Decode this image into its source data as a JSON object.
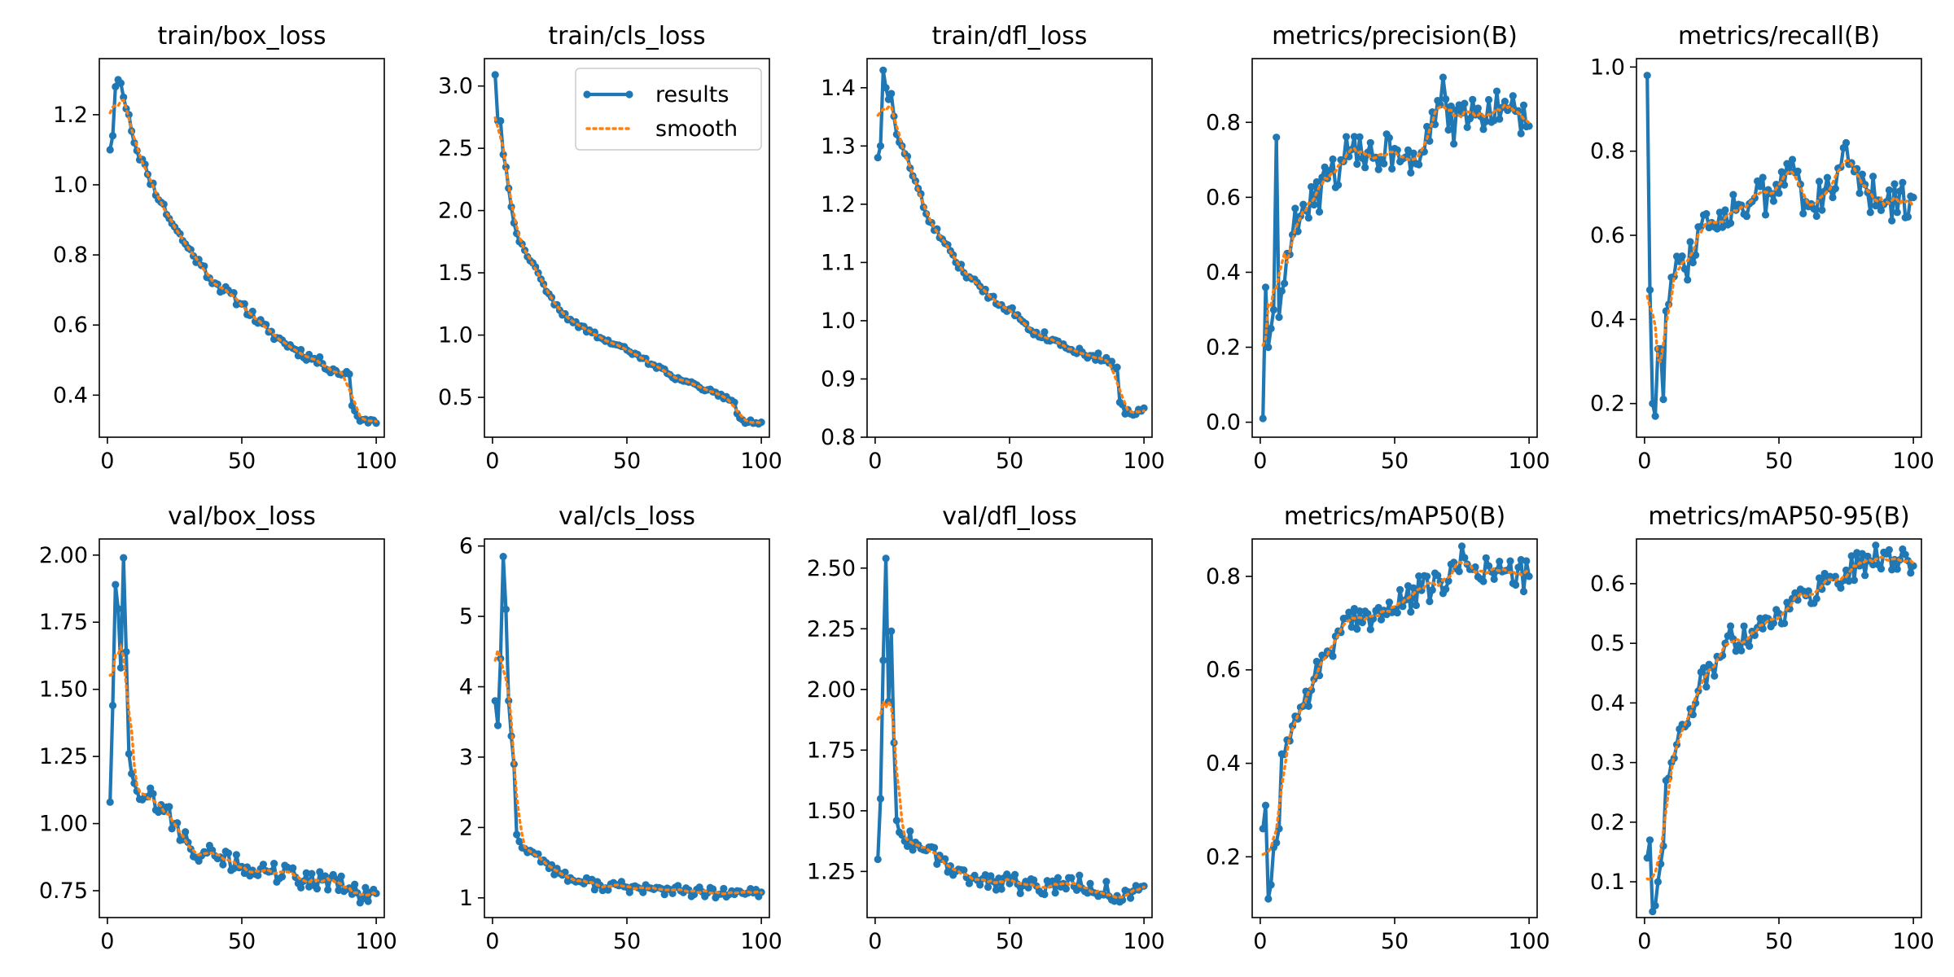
{
  "colors": {
    "results": "#1f77b4",
    "smooth": "#ff7f0e",
    "axes": "#000000"
  },
  "legend": {
    "items": [
      {
        "label": "results",
        "style": "line-marker"
      },
      {
        "label": "smooth",
        "style": "dotted"
      }
    ],
    "placement": "upper-right of train/cls_loss"
  },
  "chart_data": [
    {
      "type": "line",
      "title": "train/box_loss",
      "xlim": [
        -3,
        103
      ],
      "ylim": [
        0.28,
        1.36
      ],
      "xticks": [
        0,
        50,
        100
      ],
      "yticks": [
        0.4,
        0.6,
        0.8,
        1.0,
        1.2
      ],
      "ytick_labels": [
        "0.4",
        "0.6",
        "0.8",
        "1.0",
        "1.2"
      ],
      "anchors": [
        [
          1,
          1.1
        ],
        [
          2,
          1.14
        ],
        [
          3,
          1.28
        ],
        [
          4,
          1.3
        ],
        [
          5,
          1.29
        ],
        [
          6,
          1.25
        ],
        [
          8,
          1.2
        ],
        [
          10,
          1.12
        ],
        [
          15,
          1.03
        ],
        [
          20,
          0.95
        ],
        [
          25,
          0.88
        ],
        [
          30,
          0.82
        ],
        [
          35,
          0.77
        ],
        [
          40,
          0.72
        ],
        [
          50,
          0.66
        ],
        [
          60,
          0.58
        ],
        [
          70,
          0.53
        ],
        [
          80,
          0.49
        ],
        [
          85,
          0.47
        ],
        [
          88,
          0.46
        ],
        [
          90,
          0.46
        ],
        [
          91,
          0.37
        ],
        [
          93,
          0.34
        ],
        [
          95,
          0.33
        ],
        [
          98,
          0.33
        ],
        [
          100,
          0.32
        ]
      ],
      "noise": 0.015,
      "seed": 11
    },
    {
      "type": "line",
      "title": "train/cls_loss",
      "xlim": [
        -3,
        103
      ],
      "ylim": [
        0.18,
        3.22
      ],
      "xticks": [
        0,
        50,
        100
      ],
      "yticks": [
        0.5,
        1.0,
        1.5,
        2.0,
        2.5,
        3.0
      ],
      "ytick_labels": [
        "0.5",
        "1.0",
        "1.5",
        "2.0",
        "2.5",
        "3.0"
      ],
      "anchors": [
        [
          1,
          3.09
        ],
        [
          2,
          2.72
        ],
        [
          3,
          2.72
        ],
        [
          4,
          2.45
        ],
        [
          5,
          2.35
        ],
        [
          6,
          2.18
        ],
        [
          8,
          1.9
        ],
        [
          10,
          1.75
        ],
        [
          15,
          1.58
        ],
        [
          20,
          1.35
        ],
        [
          25,
          1.2
        ],
        [
          30,
          1.1
        ],
        [
          40,
          0.98
        ],
        [
          50,
          0.88
        ],
        [
          60,
          0.76
        ],
        [
          70,
          0.64
        ],
        [
          80,
          0.56
        ],
        [
          88,
          0.48
        ],
        [
          90,
          0.46
        ],
        [
          91,
          0.37
        ],
        [
          93,
          0.32
        ],
        [
          95,
          0.3
        ],
        [
          100,
          0.3
        ]
      ],
      "noise": 0.02,
      "seed": 22
    },
    {
      "type": "line",
      "title": "train/dfl_loss",
      "xlim": [
        -3,
        103
      ],
      "ylim": [
        0.8,
        1.45
      ],
      "xticks": [
        0,
        50,
        100
      ],
      "yticks": [
        0.8,
        0.9,
        1.0,
        1.1,
        1.2,
        1.3,
        1.4
      ],
      "ytick_labels": [
        "0.8",
        "0.9",
        "1.0",
        "1.1",
        "1.2",
        "1.3",
        "1.4"
      ],
      "anchors": [
        [
          1,
          1.28
        ],
        [
          2,
          1.3
        ],
        [
          3,
          1.43
        ],
        [
          4,
          1.4
        ],
        [
          5,
          1.38
        ],
        [
          6,
          1.39
        ],
        [
          8,
          1.32
        ],
        [
          10,
          1.3
        ],
        [
          15,
          1.24
        ],
        [
          20,
          1.17
        ],
        [
          25,
          1.14
        ],
        [
          30,
          1.1
        ],
        [
          40,
          1.05
        ],
        [
          50,
          1.02
        ],
        [
          60,
          0.98
        ],
        [
          70,
          0.96
        ],
        [
          80,
          0.94
        ],
        [
          88,
          0.93
        ],
        [
          90,
          0.92
        ],
        [
          91,
          0.86
        ],
        [
          93,
          0.84
        ],
        [
          95,
          0.84
        ],
        [
          100,
          0.85
        ]
      ],
      "noise": 0.008,
      "seed": 33
    },
    {
      "type": "line",
      "title": "metrics/precision(B)",
      "xlim": [
        -3,
        103
      ],
      "ylim": [
        -0.04,
        0.97
      ],
      "xticks": [
        0,
        50,
        100
      ],
      "yticks": [
        0.0,
        0.2,
        0.4,
        0.6,
        0.8
      ],
      "ytick_labels": [
        "0.0",
        "0.2",
        "0.4",
        "0.6",
        "0.8"
      ],
      "anchors": [
        [
          1,
          0.01
        ],
        [
          2,
          0.36
        ],
        [
          3,
          0.2
        ],
        [
          4,
          0.25
        ],
        [
          5,
          0.3
        ],
        [
          6,
          0.76
        ],
        [
          7,
          0.28
        ],
        [
          8,
          0.35
        ],
        [
          10,
          0.45
        ],
        [
          12,
          0.5
        ],
        [
          15,
          0.55
        ],
        [
          20,
          0.58
        ],
        [
          25,
          0.65
        ],
        [
          30,
          0.7
        ],
        [
          40,
          0.72
        ],
        [
          50,
          0.73
        ],
        [
          60,
          0.72
        ],
        [
          68,
          0.92
        ],
        [
          70,
          0.78
        ],
        [
          80,
          0.82
        ],
        [
          90,
          0.84
        ],
        [
          95,
          0.83
        ],
        [
          100,
          0.79
        ]
      ],
      "noise": 0.06,
      "seed": 44
    },
    {
      "type": "line",
      "title": "metrics/recall(B)",
      "xlim": [
        -3,
        103
      ],
      "ylim": [
        0.12,
        1.02
      ],
      "xticks": [
        0,
        50,
        100
      ],
      "yticks": [
        0.2,
        0.4,
        0.6,
        0.8,
        1.0
      ],
      "ytick_labels": [
        "0.2",
        "0.4",
        "0.6",
        "0.8",
        "1.0"
      ],
      "anchors": [
        [
          1,
          0.98
        ],
        [
          2,
          0.47
        ],
        [
          3,
          0.2
        ],
        [
          4,
          0.17
        ],
        [
          5,
          0.33
        ],
        [
          6,
          0.33
        ],
        [
          7,
          0.21
        ],
        [
          8,
          0.42
        ],
        [
          10,
          0.5
        ],
        [
          12,
          0.55
        ],
        [
          15,
          0.52
        ],
        [
          20,
          0.62
        ],
        [
          25,
          0.63
        ],
        [
          30,
          0.66
        ],
        [
          40,
          0.68
        ],
        [
          50,
          0.7
        ],
        [
          55,
          0.78
        ],
        [
          60,
          0.68
        ],
        [
          70,
          0.69
        ],
        [
          75,
          0.82
        ],
        [
          80,
          0.7
        ],
        [
          90,
          0.68
        ],
        [
          100,
          0.69
        ]
      ],
      "noise": 0.05,
      "seed": 55
    },
    {
      "type": "line",
      "title": "val/box_loss",
      "xlim": [
        -3,
        103
      ],
      "ylim": [
        0.65,
        2.06
      ],
      "xticks": [
        0,
        50,
        100
      ],
      "yticks": [
        0.75,
        1.0,
        1.25,
        1.5,
        1.75,
        2.0
      ],
      "ytick_labels": [
        "0.75",
        "1.00",
        "1.25",
        "1.50",
        "1.75",
        "2.00"
      ],
      "anchors": [
        [
          1,
          1.08
        ],
        [
          2,
          1.44
        ],
        [
          3,
          1.89
        ],
        [
          4,
          1.8
        ],
        [
          5,
          1.58
        ],
        [
          6,
          1.99
        ],
        [
          7,
          1.64
        ],
        [
          8,
          1.26
        ],
        [
          10,
          1.15
        ],
        [
          15,
          1.1
        ],
        [
          20,
          1.07
        ],
        [
          25,
          1.0
        ],
        [
          30,
          0.93
        ],
        [
          35,
          0.88
        ],
        [
          40,
          0.88
        ],
        [
          50,
          0.84
        ],
        [
          60,
          0.82
        ],
        [
          70,
          0.8
        ],
        [
          80,
          0.79
        ],
        [
          90,
          0.76
        ],
        [
          95,
          0.72
        ],
        [
          100,
          0.74
        ]
      ],
      "noise": 0.04,
      "seed": 66
    },
    {
      "type": "line",
      "title": "val/cls_loss",
      "xlim": [
        -3,
        103
      ],
      "ylim": [
        0.72,
        6.1
      ],
      "xticks": [
        0,
        50,
        100
      ],
      "yticks": [
        1,
        2,
        3,
        4,
        5,
        6
      ],
      "ytick_labels": [
        "1",
        "2",
        "3",
        "4",
        "5",
        "6"
      ],
      "anchors": [
        [
          1,
          3.8
        ],
        [
          2,
          3.45
        ],
        [
          3,
          4.4
        ],
        [
          4,
          5.85
        ],
        [
          5,
          5.1
        ],
        [
          6,
          3.8
        ],
        [
          7,
          3.3
        ],
        [
          8,
          2.9
        ],
        [
          9,
          1.9
        ],
        [
          10,
          1.8
        ],
        [
          12,
          1.7
        ],
        [
          15,
          1.65
        ],
        [
          20,
          1.5
        ],
        [
          25,
          1.35
        ],
        [
          30,
          1.25
        ],
        [
          40,
          1.18
        ],
        [
          50,
          1.15
        ],
        [
          60,
          1.12
        ],
        [
          70,
          1.1
        ],
        [
          80,
          1.07
        ],
        [
          90,
          1.05
        ],
        [
          100,
          1.08
        ]
      ],
      "noise": 0.08,
      "seed": 77
    },
    {
      "type": "line",
      "title": "val/dfl_loss",
      "xlim": [
        -3,
        103
      ],
      "ylim": [
        1.06,
        2.62
      ],
      "xticks": [
        0,
        50,
        100
      ],
      "yticks": [
        1.25,
        1.5,
        1.75,
        2.0,
        2.25,
        2.5
      ],
      "ytick_labels": [
        "1.25",
        "1.50",
        "1.75",
        "2.00",
        "2.25",
        "2.50"
      ],
      "anchors": [
        [
          1,
          1.3
        ],
        [
          2,
          1.55
        ],
        [
          3,
          2.12
        ],
        [
          4,
          2.54
        ],
        [
          5,
          1.95
        ],
        [
          6,
          2.24
        ],
        [
          7,
          1.78
        ],
        [
          8,
          1.46
        ],
        [
          10,
          1.4
        ],
        [
          15,
          1.37
        ],
        [
          20,
          1.35
        ],
        [
          25,
          1.3
        ],
        [
          30,
          1.25
        ],
        [
          40,
          1.22
        ],
        [
          50,
          1.2
        ],
        [
          60,
          1.19
        ],
        [
          70,
          1.2
        ],
        [
          80,
          1.2
        ],
        [
          90,
          1.15
        ],
        [
          95,
          1.14
        ],
        [
          100,
          1.19
        ]
      ],
      "noise": 0.04,
      "seed": 88
    },
    {
      "type": "line",
      "title": "metrics/mAP50(B)",
      "xlim": [
        -3,
        103
      ],
      "ylim": [
        0.07,
        0.88
      ],
      "xticks": [
        0,
        50,
        100
      ],
      "yticks": [
        0.2,
        0.4,
        0.6,
        0.8
      ],
      "ytick_labels": [
        "0.2",
        "0.4",
        "0.6",
        "0.8"
      ],
      "anchors": [
        [
          1,
          0.26
        ],
        [
          2,
          0.31
        ],
        [
          3,
          0.11
        ],
        [
          4,
          0.14
        ],
        [
          5,
          0.22
        ],
        [
          6,
          0.23
        ],
        [
          7,
          0.26
        ],
        [
          8,
          0.42
        ],
        [
          10,
          0.45
        ],
        [
          12,
          0.48
        ],
        [
          15,
          0.52
        ],
        [
          20,
          0.58
        ],
        [
          25,
          0.64
        ],
        [
          30,
          0.68
        ],
        [
          40,
          0.72
        ],
        [
          50,
          0.73
        ],
        [
          60,
          0.77
        ],
        [
          70,
          0.79
        ],
        [
          76,
          0.84
        ],
        [
          80,
          0.82
        ],
        [
          90,
          0.81
        ],
        [
          100,
          0.8
        ]
      ],
      "noise": 0.035,
      "seed": 99
    },
    {
      "type": "line",
      "title": "metrics/mAP50-95(B)",
      "xlim": [
        -3,
        103
      ],
      "ylim": [
        0.04,
        0.675
      ],
      "xticks": [
        0,
        50,
        100
      ],
      "yticks": [
        0.1,
        0.2,
        0.3,
        0.4,
        0.5,
        0.6
      ],
      "ytick_labels": [
        "0.1",
        "0.2",
        "0.3",
        "0.4",
        "0.5",
        "0.6"
      ],
      "anchors": [
        [
          1,
          0.14
        ],
        [
          2,
          0.17
        ],
        [
          3,
          0.05
        ],
        [
          4,
          0.06
        ],
        [
          5,
          0.1
        ],
        [
          6,
          0.13
        ],
        [
          7,
          0.16
        ],
        [
          8,
          0.27
        ],
        [
          10,
          0.3
        ],
        [
          12,
          0.33
        ],
        [
          15,
          0.36
        ],
        [
          20,
          0.42
        ],
        [
          25,
          0.46
        ],
        [
          30,
          0.5
        ],
        [
          40,
          0.52
        ],
        [
          50,
          0.55
        ],
        [
          60,
          0.58
        ],
        [
          70,
          0.61
        ],
        [
          80,
          0.63
        ],
        [
          90,
          0.65
        ],
        [
          95,
          0.64
        ],
        [
          100,
          0.63
        ]
      ],
      "noise": 0.025,
      "seed": 111
    }
  ]
}
